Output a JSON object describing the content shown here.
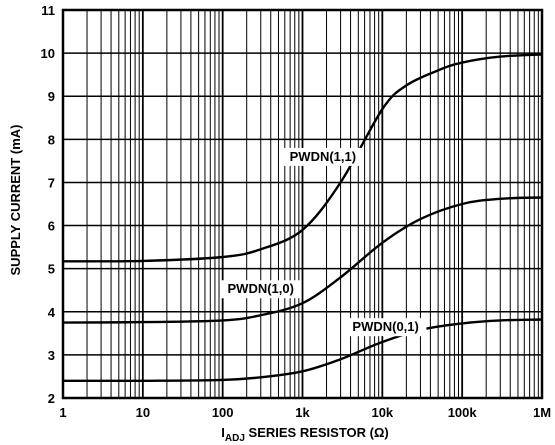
{
  "chart_data": {
    "type": "line",
    "x_scale": "log",
    "xlim": [
      1,
      1000000
    ],
    "ylim": [
      2,
      11
    ],
    "grid": true,
    "xlabel_main": "I",
    "xlabel_sub": "ADJ",
    "xlabel_rest": " SERIES RESISTOR (Ω)",
    "ylabel": "SUPPLY CURRENT (mA)",
    "x_ticks": [
      {
        "value": 1,
        "label": "1"
      },
      {
        "value": 10,
        "label": "10"
      },
      {
        "value": 100,
        "label": "100"
      },
      {
        "value": 1000,
        "label": "1k"
      },
      {
        "value": 10000,
        "label": "10k"
      },
      {
        "value": 100000,
        "label": "100k"
      },
      {
        "value": 1000000,
        "label": "1M"
      }
    ],
    "y_ticks": [
      {
        "value": 2,
        "label": "2"
      },
      {
        "value": 3,
        "label": "3"
      },
      {
        "value": 4,
        "label": "4"
      },
      {
        "value": 5,
        "label": "5"
      },
      {
        "value": 6,
        "label": "6"
      },
      {
        "value": 7,
        "label": "7"
      },
      {
        "value": 8,
        "label": "8"
      },
      {
        "value": 9,
        "label": "9"
      },
      {
        "value": 10,
        "label": "10"
      },
      {
        "value": 11,
        "label": "11"
      }
    ],
    "series": [
      {
        "name": "PWDN(1,1)",
        "label_at": {
          "x": 1800,
          "y": 7.5
        },
        "x": [
          1,
          10,
          100,
          300,
          1000,
          3000,
          10000,
          20000,
          50000,
          100000,
          300000,
          1000000
        ],
        "y": [
          5.17,
          5.18,
          5.27,
          5.45,
          5.9,
          7.0,
          8.7,
          9.25,
          9.6,
          9.78,
          9.92,
          9.97
        ]
      },
      {
        "name": "PWDN(1,0)",
        "label_at": {
          "x": 300,
          "y": 4.43
        },
        "x": [
          1,
          10,
          100,
          300,
          1000,
          3000,
          10000,
          30000,
          100000,
          300000,
          1000000
        ],
        "y": [
          3.75,
          3.76,
          3.8,
          3.92,
          4.2,
          4.8,
          5.6,
          6.15,
          6.5,
          6.62,
          6.65
        ]
      },
      {
        "name": "PWDN(0,1)",
        "label_at": {
          "x": 11000,
          "y": 3.55
        },
        "x": [
          1,
          10,
          100,
          300,
          1000,
          3000,
          10000,
          30000,
          100000,
          300000,
          1000000
        ],
        "y": [
          2.4,
          2.4,
          2.42,
          2.48,
          2.62,
          2.9,
          3.3,
          3.58,
          3.73,
          3.8,
          3.82
        ]
      }
    ]
  }
}
